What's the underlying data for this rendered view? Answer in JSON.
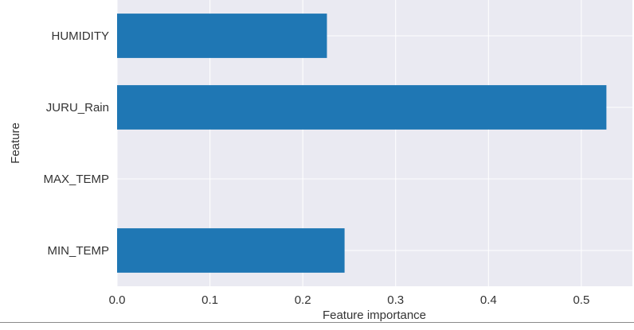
{
  "chart_data": {
    "type": "bar",
    "orientation": "horizontal",
    "categories": [
      "HUMIDITY",
      "JURU_Rain",
      "MAX_TEMP",
      "MIN_TEMP"
    ],
    "values": [
      0.226,
      0.527,
      0.0,
      0.245
    ],
    "xlabel": "Feature importance",
    "ylabel": "Feature",
    "xlim": [
      0.0,
      0.555
    ],
    "xticks": [
      "0.0",
      "0.1",
      "0.2",
      "0.3",
      "0.4",
      "0.5"
    ],
    "grid": true,
    "legend": "none",
    "colors": {
      "bar": "#1f77b4",
      "plot_background": "#eaeaf2",
      "grid": "#ffffff"
    }
  }
}
